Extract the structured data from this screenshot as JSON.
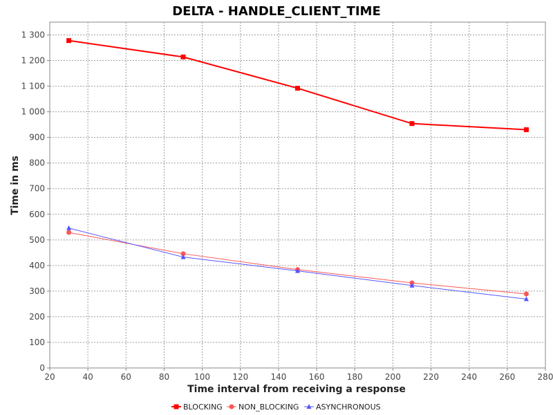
{
  "chart_data": {
    "type": "line",
    "title": "DELTA - HANDLE_CLIENT_TIME",
    "xlabel": "Time interval from receiving a response",
    "ylabel": "Time in ms",
    "xlim": [
      20,
      280
    ],
    "ylim": [
      0,
      1350
    ],
    "x_ticks": [
      20,
      40,
      60,
      80,
      100,
      120,
      140,
      160,
      180,
      200,
      220,
      240,
      260,
      280
    ],
    "y_ticks": [
      0,
      100,
      200,
      300,
      400,
      500,
      600,
      700,
      800,
      900,
      1000,
      1100,
      1200,
      1300
    ],
    "y_tick_labels": [
      "0",
      "100",
      "200",
      "300",
      "400",
      "500",
      "600",
      "700",
      "800",
      "900",
      "1 000",
      "1 100",
      "1 200",
      "1 300"
    ],
    "grid": true,
    "legend_position": "bottom-center",
    "x": [
      30,
      90,
      150,
      210,
      270
    ],
    "series": [
      {
        "name": "BLOCKING",
        "color": "#ff0000",
        "marker": "square",
        "values": [
          1278,
          1214,
          1092,
          954,
          930
        ]
      },
      {
        "name": "NON_BLOCKING",
        "color": "#ff5555",
        "marker": "circle",
        "values": [
          529,
          446,
          384,
          332,
          289
        ]
      },
      {
        "name": "ASYNCHRONOUS",
        "color": "#5555ff",
        "marker": "triangle",
        "values": [
          546,
          433,
          379,
          322,
          269
        ]
      }
    ]
  }
}
